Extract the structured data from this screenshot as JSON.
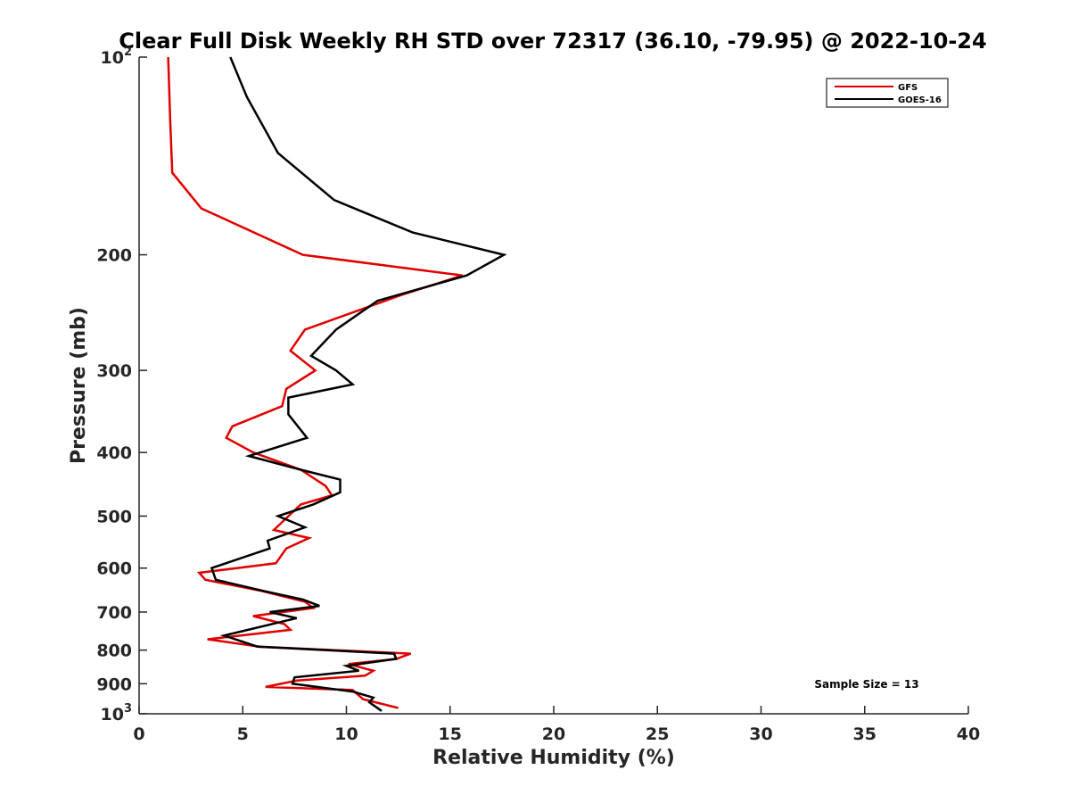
{
  "chart_data": {
    "type": "line",
    "title": "Clear Full Disk Weekly RH STD over 72317 (36.10, -79.95) @ 2022-10-24",
    "xlabel": "Relative Humidity (%)",
    "ylabel": "Pressure (mb)",
    "xlim": [
      0,
      40
    ],
    "ylim": [
      100,
      1000
    ],
    "y_scale": "log",
    "y_reversed": true,
    "grid": false,
    "legend_position": "top-right",
    "x_ticks": [
      "0",
      "5",
      "10",
      "15",
      "20",
      "25",
      "30",
      "35",
      "40"
    ],
    "y_ticks": [
      {
        "value": 100,
        "base": "10",
        "exp": "2"
      },
      {
        "value": 200,
        "label": "200"
      },
      {
        "value": 300,
        "label": "300"
      },
      {
        "value": 400,
        "label": "400"
      },
      {
        "value": 500,
        "label": "500"
      },
      {
        "value": 600,
        "label": "600"
      },
      {
        "value": 700,
        "label": "700"
      },
      {
        "value": 800,
        "label": "800"
      },
      {
        "value": 900,
        "label": "900"
      },
      {
        "value": 1000,
        "base": "10",
        "exp": "3"
      }
    ],
    "series": [
      {
        "name": "GFS",
        "color": "#e00000",
        "points": [
          [
            1.4,
            100
          ],
          [
            1.5,
            125
          ],
          [
            1.6,
            150
          ],
          [
            3.0,
            170
          ],
          [
            7.9,
            200
          ],
          [
            15.6,
            215
          ],
          [
            12.7,
            230
          ],
          [
            8.0,
            260
          ],
          [
            7.3,
            280
          ],
          [
            8.5,
            300
          ],
          [
            7.1,
            320
          ],
          [
            6.9,
            340
          ],
          [
            4.5,
            365
          ],
          [
            4.2,
            380
          ],
          [
            5.5,
            400
          ],
          [
            7.8,
            425
          ],
          [
            9.0,
            450
          ],
          [
            9.3,
            465
          ],
          [
            7.8,
            480
          ],
          [
            6.5,
            525
          ],
          [
            8.2,
            540
          ],
          [
            7.1,
            560
          ],
          [
            6.6,
            590
          ],
          [
            2.9,
            610
          ],
          [
            3.2,
            625
          ],
          [
            5.9,
            650
          ],
          [
            8.0,
            675
          ],
          [
            8.4,
            690
          ],
          [
            5.5,
            710
          ],
          [
            7.0,
            730
          ],
          [
            7.3,
            745
          ],
          [
            3.3,
            770
          ],
          [
            5.8,
            790
          ],
          [
            13.1,
            810
          ],
          [
            12.4,
            825
          ],
          [
            10.1,
            840
          ],
          [
            11.3,
            860
          ],
          [
            10.9,
            875
          ],
          [
            7.6,
            890
          ],
          [
            6.1,
            910
          ],
          [
            10.3,
            920
          ],
          [
            10.8,
            950
          ],
          [
            12.5,
            980
          ]
        ]
      },
      {
        "name": "GOES-16",
        "color": "#000000",
        "points": [
          [
            4.4,
            100
          ],
          [
            5.2,
            115
          ],
          [
            6.7,
            140
          ],
          [
            9.4,
            165
          ],
          [
            13.2,
            185
          ],
          [
            17.6,
            200
          ],
          [
            15.8,
            215
          ],
          [
            11.5,
            235
          ],
          [
            9.5,
            260
          ],
          [
            8.3,
            285
          ],
          [
            9.5,
            300
          ],
          [
            10.3,
            315
          ],
          [
            7.2,
            330
          ],
          [
            7.2,
            350
          ],
          [
            8.1,
            380
          ],
          [
            5.3,
            405
          ],
          [
            7.8,
            425
          ],
          [
            9.7,
            440
          ],
          [
            9.7,
            460
          ],
          [
            8.4,
            480
          ],
          [
            6.7,
            500
          ],
          [
            8.0,
            520
          ],
          [
            6.2,
            545
          ],
          [
            6.3,
            560
          ],
          [
            3.5,
            600
          ],
          [
            3.7,
            625
          ],
          [
            6.0,
            650
          ],
          [
            7.9,
            670
          ],
          [
            8.7,
            685
          ],
          [
            6.3,
            700
          ],
          [
            7.6,
            715
          ],
          [
            4.1,
            760
          ],
          [
            5.7,
            790
          ],
          [
            12.3,
            810
          ],
          [
            12.4,
            825
          ],
          [
            10.0,
            845
          ],
          [
            10.6,
            860
          ],
          [
            7.5,
            880
          ],
          [
            7.4,
            900
          ],
          [
            10.3,
            925
          ],
          [
            11.3,
            945
          ],
          [
            11.1,
            960
          ],
          [
            11.7,
            990
          ]
        ]
      }
    ],
    "annotation": "Sample Size = 13"
  }
}
